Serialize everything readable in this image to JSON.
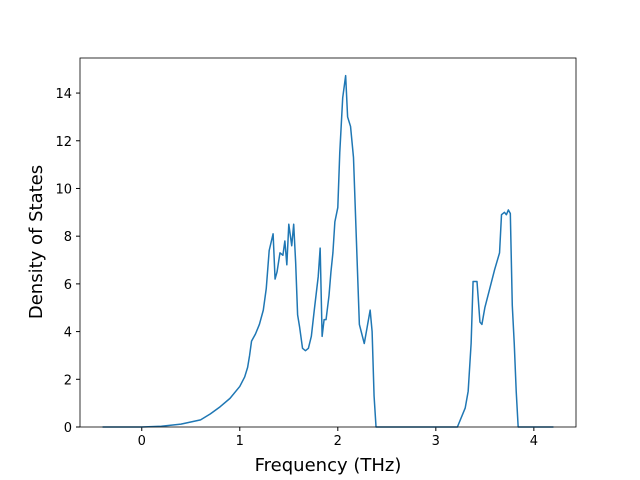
{
  "chart_data": {
    "type": "line",
    "xlabel": "Frequency (THz)",
    "ylabel": "Density of States",
    "x": [
      -0.4,
      0,
      0.2,
      0.4,
      0.6,
      0.7,
      0.8,
      0.9,
      1.0,
      1.05,
      1.08,
      1.1,
      1.12,
      1.16,
      1.2,
      1.24,
      1.27,
      1.3,
      1.34,
      1.36,
      1.38,
      1.41,
      1.44,
      1.46,
      1.48,
      1.5,
      1.53,
      1.55,
      1.57,
      1.59,
      1.61,
      1.64,
      1.67,
      1.7,
      1.73,
      1.76,
      1.8,
      1.82,
      1.84,
      1.86,
      1.88,
      1.91,
      1.93,
      1.95,
      1.97,
      2.0,
      2.02,
      2.05,
      2.08,
      2.1,
      2.13,
      2.16,
      2.19,
      2.22,
      2.27,
      2.3,
      2.33,
      2.35,
      2.37,
      2.39,
      3.22,
      3.3,
      3.33,
      3.36,
      3.38,
      3.42,
      3.45,
      3.47,
      3.5,
      3.55,
      3.6,
      3.65,
      3.67,
      3.7,
      3.72,
      3.74,
      3.76,
      3.78,
      3.8,
      3.82,
      3.84,
      4.2
    ],
    "series": [
      {
        "name": "DOS",
        "color": "#1f77b4",
        "values": [
          0,
          0,
          0.03,
          0.12,
          0.3,
          0.55,
          0.85,
          1.2,
          1.7,
          2.1,
          2.5,
          3.0,
          3.6,
          3.9,
          4.3,
          4.9,
          5.8,
          7.4,
          8.1,
          6.2,
          6.5,
          7.3,
          7.2,
          7.8,
          6.8,
          8.5,
          7.6,
          8.5,
          6.9,
          4.7,
          4.2,
          3.3,
          3.2,
          3.3,
          3.8,
          4.9,
          6.3,
          7.5,
          3.8,
          4.5,
          4.5,
          5.5,
          6.5,
          7.3,
          8.6,
          9.2,
          11.5,
          13.8,
          14.73,
          13.0,
          12.6,
          11.3,
          7.8,
          4.3,
          3.5,
          4.2,
          4.9,
          4.0,
          1.3,
          0,
          0,
          0.8,
          1.5,
          3.5,
          6.1,
          6.1,
          4.4,
          4.3,
          5.0,
          5.8,
          6.6,
          7.3,
          8.9,
          9.0,
          8.9,
          9.1,
          8.95,
          5.1,
          3.5,
          1.5,
          0,
          0
        ]
      }
    ],
    "xlim": [
      -0.63,
      4.43
    ],
    "ylim": [
      0,
      15.47
    ],
    "xticks": [
      0,
      1,
      2,
      3,
      4
    ],
    "yticks": [
      0,
      2,
      4,
      6,
      8,
      10,
      12,
      14
    ]
  }
}
